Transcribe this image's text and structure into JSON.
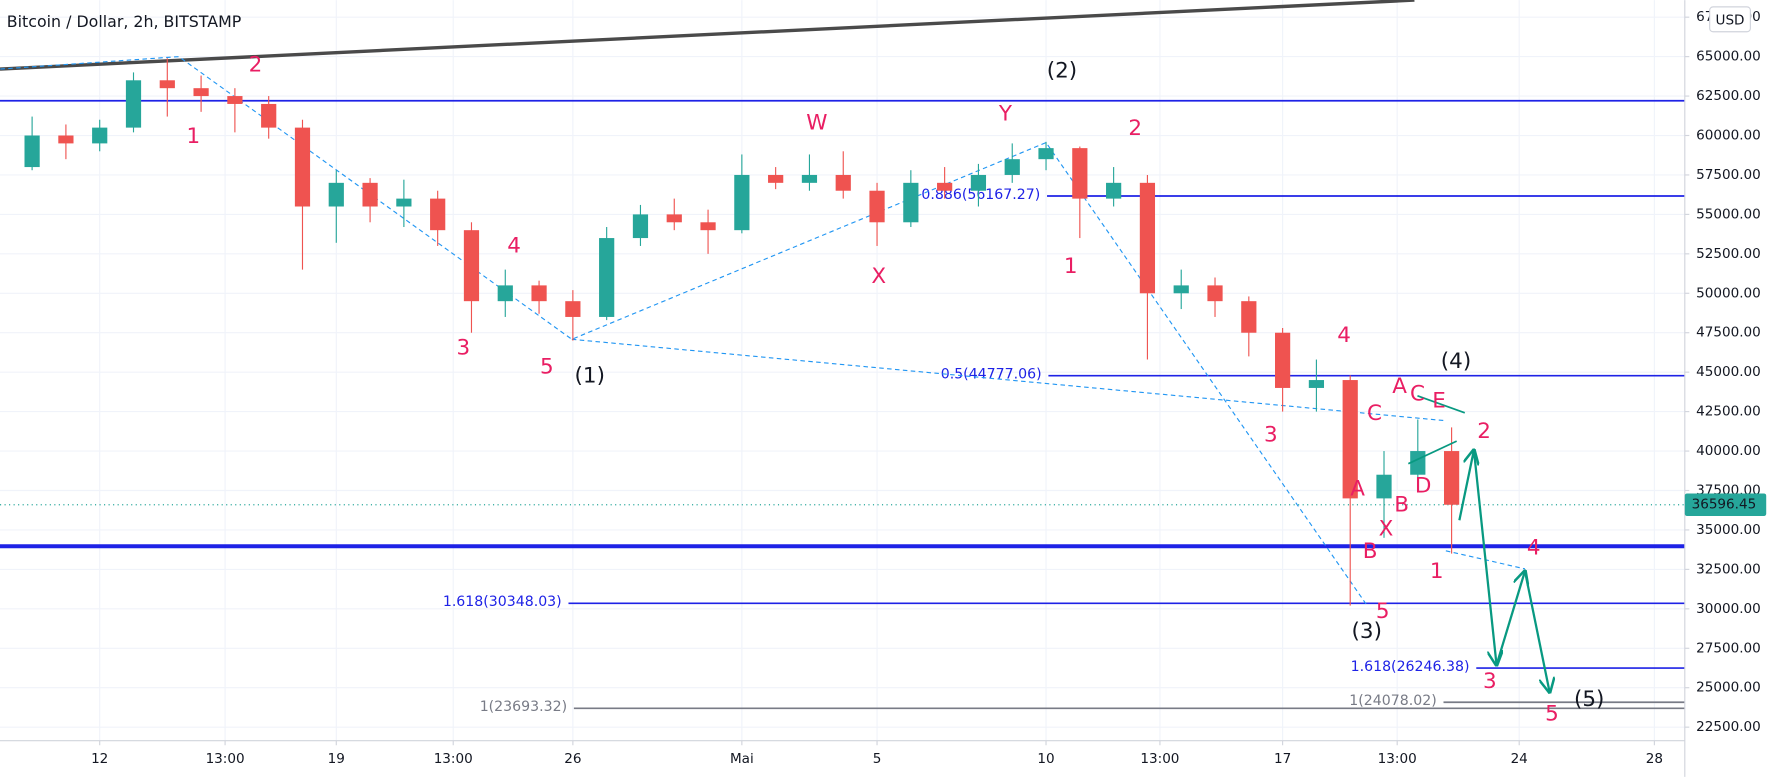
{
  "chart_data": {
    "type": "candlestick",
    "title": "Bitcoin / Dollar, 2h, BITSTAMP",
    "currency": "USD",
    "xlim": [
      9.05,
      58.9
    ],
    "ylim": [
      21640,
      68583
    ],
    "grid": true,
    "up_color": "#26a69a",
    "down_color": "#ef5350",
    "xticks": [
      {
        "value": 12,
        "label": "12"
      },
      {
        "value": 15.71,
        "label": "13:00"
      },
      {
        "value": 19,
        "label": "19"
      },
      {
        "value": 22.46,
        "label": "13:00"
      },
      {
        "value": 26,
        "label": "26"
      },
      {
        "value": 31,
        "label": "Mai"
      },
      {
        "value": 35,
        "label": "5"
      },
      {
        "value": 40,
        "label": "10"
      },
      {
        "value": 43.37,
        "label": "13:00"
      },
      {
        "value": 47,
        "label": "17"
      },
      {
        "value": 50.39,
        "label": "13:00"
      },
      {
        "value": 54,
        "label": "24"
      },
      {
        "value": 58,
        "label": "28"
      }
    ],
    "yticks": [
      {
        "value": 22500,
        "label": "22500.00"
      },
      {
        "value": 25000,
        "label": "25000.00"
      },
      {
        "value": 27500,
        "label": "27500.00"
      },
      {
        "value": 30000,
        "label": "30000.00"
      },
      {
        "value": 32500,
        "label": "32500.00"
      },
      {
        "value": 35000,
        "label": "35000.00"
      },
      {
        "value": 37500,
        "label": "37500.00"
      },
      {
        "value": 40000,
        "label": "40000.00"
      },
      {
        "value": 42500,
        "label": "42500.00"
      },
      {
        "value": 45000,
        "label": "45000.00"
      },
      {
        "value": 47500,
        "label": "47500.00"
      },
      {
        "value": 50000,
        "label": "50000.00"
      },
      {
        "value": 52500,
        "label": "52500.00"
      },
      {
        "value": 55000,
        "label": "55000.00"
      },
      {
        "value": 57500,
        "label": "57500.00"
      },
      {
        "value": 60000,
        "label": "60000.00"
      },
      {
        "value": 62500,
        "label": "62500.00"
      },
      {
        "value": 65000,
        "label": "65000.00"
      },
      {
        "value": 67500,
        "label": "67500.00"
      }
    ],
    "x": [
      10,
      11,
      12,
      13,
      14,
      15,
      16,
      17,
      18,
      19,
      20,
      21,
      22,
      23,
      24,
      25,
      26,
      27,
      28,
      29,
      30,
      31,
      32,
      33,
      34,
      35,
      36,
      37,
      38,
      39,
      40,
      41,
      42,
      43,
      44,
      45,
      46,
      47,
      48,
      49,
      50,
      51,
      52
    ],
    "open": [
      58000,
      60000,
      59500,
      60500,
      63500,
      63000,
      62500,
      62000,
      60500,
      55500,
      57000,
      55500,
      56000,
      54000,
      49500,
      50500,
      49500,
      48500,
      53500,
      55000,
      54500,
      54000,
      57500,
      57000,
      57500,
      56500,
      54500,
      57000,
      56500,
      57500,
      58500,
      59200,
      56000,
      57000,
      50000,
      50500,
      49500,
      47500,
      44000,
      44500,
      37000,
      38500,
      40000
    ],
    "high": [
      61200,
      60700,
      61000,
      64000,
      64900,
      63800,
      63000,
      62500,
      61000,
      57800,
      57300,
      57200,
      56500,
      54500,
      51500,
      50800,
      50200,
      54200,
      55600,
      56000,
      55300,
      58800,
      58000,
      58800,
      59000,
      57000,
      57800,
      58000,
      58200,
      59500,
      59600,
      59300,
      58000,
      57500,
      51500,
      51000,
      49800,
      47800,
      45800,
      44800,
      40000,
      42000,
      41500
    ],
    "low": [
      57800,
      58500,
      59000,
      60200,
      61200,
      61500,
      60200,
      59800,
      51500,
      53200,
      54500,
      54200,
      53000,
      47500,
      48500,
      48700,
      47000,
      48300,
      53000,
      54000,
      52500,
      53800,
      56600,
      56500,
      56000,
      53000,
      54200,
      56000,
      55500,
      57000,
      57800,
      53500,
      55500,
      45800,
      49000,
      48500,
      46000,
      42500,
      42500,
      30200,
      34500,
      37500,
      33500
    ],
    "close": [
      60000,
      59500,
      60500,
      63500,
      63000,
      62500,
      62000,
      60500,
      55500,
      57000,
      55500,
      56000,
      54000,
      49500,
      50500,
      49500,
      48500,
      53500,
      55000,
      54500,
      54000,
      57500,
      57000,
      57500,
      56500,
      54500,
      57000,
      56500,
      57500,
      58500,
      59200,
      56000,
      57000,
      50000,
      50500,
      49500,
      47500,
      44000,
      44500,
      37000,
      38500,
      40000,
      36596.45
    ],
    "last_price": 36596.45,
    "last_price_color": "#26a69a",
    "levels": [
      {
        "value": 62205,
        "color": "#1e22e6"
      },
      {
        "value": 33967,
        "color": "#1e22e6",
        "bold": true
      },
      {
        "value": 56167.27,
        "label": "0.886(56167.27)",
        "start": 40.03,
        "color": "#1e22e6"
      },
      {
        "value": 44777.06,
        "label": "0.5(44777.06)",
        "start": 40.07,
        "color": "#1e22e6"
      },
      {
        "value": 30348.03,
        "label": "1.618(30348.03)",
        "start": 25.87,
        "color": "#1e22e6"
      },
      {
        "value": 26246.38,
        "label": "1.618(26246.38)",
        "start": 52.73,
        "color": "#1e22e6"
      },
      {
        "value": 23693.32,
        "label": "1(23693.32)",
        "start": 26.03,
        "color": "#787b86"
      },
      {
        "value": 24078.02,
        "label": "1(24078.02)",
        "start": 51.76,
        "color": "#787b86"
      }
    ],
    "trendline": {
      "x": [
        9.05,
        50.9
      ],
      "y": [
        64212,
        68583
      ],
      "color": "#4a4a4a"
    },
    "wave_lines": [
      {
        "x": [
          9.06,
          14.34,
          25.97,
          40.0,
          49.49
        ],
        "y": [
          64212,
          65000,
          47083,
          59553,
          30240
        ]
      },
      {
        "x": [
          25.97,
          51.83
        ],
        "y": [
          47083,
          41922
        ]
      },
      {
        "x": [
          51.83,
          54.17
        ],
        "y": [
          33680,
          32533
        ]
      }
    ],
    "wave_color": "#2196f3",
    "channel_lines": [
      {
        "x": [
          50.99,
          52.39
        ],
        "y": [
          43500,
          42425
        ]
      },
      {
        "x": [
          50.72,
          52.15
        ],
        "y": [
          39200,
          40630
        ]
      }
    ],
    "projection": {
      "x": [
        52.23,
        52.66,
        53.33,
        54.17,
        54.9
      ],
      "y": [
        35615,
        40059,
        26442,
        32389,
        24722
      ],
      "color": "#089981"
    },
    "annotations": [
      {
        "text": "2",
        "x": 16.61,
        "y": 64427,
        "color": "#e91e63"
      },
      {
        "text": "1",
        "x": 14.77,
        "y": 59912,
        "color": "#e91e63"
      },
      {
        "text": "4",
        "x": 24.26,
        "y": 52960,
        "color": "#e91e63"
      },
      {
        "text": "3",
        "x": 22.76,
        "y": 46510,
        "color": "#e91e63"
      },
      {
        "text": "5",
        "x": 25.23,
        "y": 45291,
        "color": "#e91e63"
      },
      {
        "text": "(1)",
        "x": 26.5,
        "y": 44718,
        "color": "#131722"
      },
      {
        "text": "W",
        "x": 33.22,
        "y": 60771,
        "color": "#e91e63"
      },
      {
        "text": "X",
        "x": 35.05,
        "y": 51025,
        "color": "#e91e63"
      },
      {
        "text": "Y",
        "x": 38.8,
        "y": 61345,
        "color": "#e91e63"
      },
      {
        "text": "(2)",
        "x": 40.47,
        "y": 64068,
        "color": "#131722"
      },
      {
        "text": "2",
        "x": 42.64,
        "y": 60413,
        "color": "#e91e63"
      },
      {
        "text": "1",
        "x": 40.73,
        "y": 51670,
        "color": "#e91e63"
      },
      {
        "text": "4",
        "x": 48.82,
        "y": 47297,
        "color": "#e91e63"
      },
      {
        "text": "3",
        "x": 46.65,
        "y": 40991,
        "color": "#e91e63"
      },
      {
        "text": "C",
        "x": 49.72,
        "y": 42353,
        "color": "#e91e63"
      },
      {
        "text": "A",
        "x": 50.46,
        "y": 44073,
        "color": "#e91e63"
      },
      {
        "text": "C",
        "x": 50.99,
        "y": 43571,
        "color": "#e91e63"
      },
      {
        "text": "E",
        "x": 51.63,
        "y": 43141,
        "color": "#e91e63"
      },
      {
        "text": "(4)",
        "x": 52.13,
        "y": 45649,
        "color": "#131722"
      },
      {
        "text": "2",
        "x": 52.96,
        "y": 41206,
        "color": "#e91e63"
      },
      {
        "text": "A",
        "x": 49.22,
        "y": 37550,
        "color": "#e91e63"
      },
      {
        "text": "B",
        "x": 50.52,
        "y": 36547,
        "color": "#e91e63"
      },
      {
        "text": "D",
        "x": 51.16,
        "y": 37765,
        "color": "#e91e63"
      },
      {
        "text": "X",
        "x": 50.06,
        "y": 35042,
        "color": "#e91e63"
      },
      {
        "text": "B",
        "x": 49.59,
        "y": 33609,
        "color": "#e91e63"
      },
      {
        "text": "1",
        "x": 51.56,
        "y": 32319,
        "color": "#e91e63"
      },
      {
        "text": "4",
        "x": 54.43,
        "y": 33824,
        "color": "#e91e63"
      },
      {
        "text": "5",
        "x": 49.96,
        "y": 29811,
        "color": "#e91e63"
      },
      {
        "text": "(3)",
        "x": 49.49,
        "y": 28521,
        "color": "#131722"
      },
      {
        "text": "3",
        "x": 53.13,
        "y": 25367,
        "color": "#e91e63"
      },
      {
        "text": "5",
        "x": 54.97,
        "y": 23288,
        "color": "#e91e63"
      },
      {
        "text": "(5)",
        "x": 56.07,
        "y": 24221,
        "color": "#131722"
      }
    ]
  }
}
